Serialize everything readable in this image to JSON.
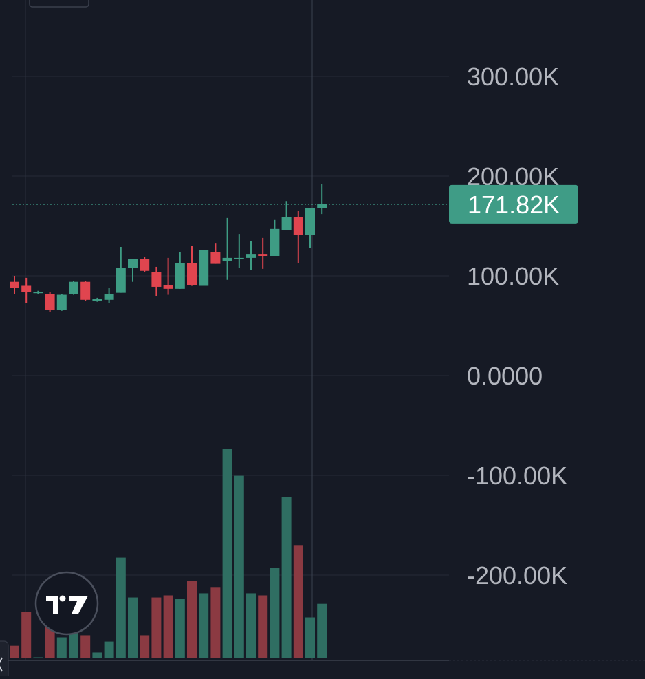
{
  "chart_data": {
    "type": "candlestick",
    "price_axis": {
      "ticks": [
        {
          "value": 300000,
          "label": "300.00K"
        },
        {
          "value": 200000,
          "label": "200.00K"
        },
        {
          "value": 100000,
          "label": "100.00K"
        },
        {
          "value": 0,
          "label": "0.0000"
        },
        {
          "value": -100000,
          "label": "-100.00K"
        },
        {
          "value": -200000,
          "label": "-200.00K"
        }
      ],
      "range": [
        -282000,
        378000
      ],
      "grid": true,
      "position": "right"
    },
    "last_price": {
      "value": 171820,
      "label": "171.82K"
    },
    "candles": [
      {
        "o": 94000,
        "h": 100000,
        "l": 82000,
        "c": 88000
      },
      {
        "o": 90000,
        "h": 98000,
        "l": 73000,
        "c": 84000
      },
      {
        "o": 83000,
        "h": 85000,
        "l": 82000,
        "c": 84000
      },
      {
        "o": 82000,
        "h": 84000,
        "l": 64000,
        "c": 66000
      },
      {
        "o": 66000,
        "h": 82000,
        "l": 65000,
        "c": 81000
      },
      {
        "o": 82000,
        "h": 95000,
        "l": 81000,
        "c": 94000
      },
      {
        "o": 94000,
        "h": 95000,
        "l": 75000,
        "c": 76000
      },
      {
        "o": 75000,
        "h": 78000,
        "l": 74000,
        "c": 77000
      },
      {
        "o": 76000,
        "h": 88000,
        "l": 73000,
        "c": 82000
      },
      {
        "o": 83000,
        "h": 129000,
        "l": 83000,
        "c": 108000
      },
      {
        "o": 108000,
        "h": 117000,
        "l": 94000,
        "c": 117000
      },
      {
        "o": 117000,
        "h": 119000,
        "l": 104000,
        "c": 105000
      },
      {
        "o": 104000,
        "h": 109000,
        "l": 80000,
        "c": 89000
      },
      {
        "o": 91000,
        "h": 118000,
        "l": 81000,
        "c": 87000
      },
      {
        "o": 87000,
        "h": 124000,
        "l": 87000,
        "c": 113000
      },
      {
        "o": 113000,
        "h": 130000,
        "l": 90000,
        "c": 91000
      },
      {
        "o": 90000,
        "h": 126000,
        "l": 90000,
        "c": 126000
      },
      {
        "o": 124000,
        "h": 133000,
        "l": 112000,
        "c": 112000
      },
      {
        "o": 115000,
        "h": 158000,
        "l": 96000,
        "c": 118000
      },
      {
        "o": 117000,
        "h": 142000,
        "l": 108000,
        "c": 118000
      },
      {
        "o": 118000,
        "h": 135000,
        "l": 106000,
        "c": 122000
      },
      {
        "o": 122000,
        "h": 138000,
        "l": 107000,
        "c": 120000
      },
      {
        "o": 120000,
        "h": 156000,
        "l": 120000,
        "c": 147000
      },
      {
        "o": 146000,
        "h": 175000,
        "l": 146000,
        "c": 159000
      },
      {
        "o": 159000,
        "h": 165000,
        "l": 113000,
        "c": 141000
      },
      {
        "o": 141000,
        "h": 168000,
        "l": 128000,
        "c": 168000
      },
      {
        "o": 168000,
        "h": 192000,
        "l": 162000,
        "c": 172000
      }
    ],
    "volume": [
      {
        "value": 0.06,
        "dir": "down"
      },
      {
        "value": 0.22,
        "dir": "down"
      },
      {
        "value": 0.005,
        "dir": "up"
      },
      {
        "value": 0.16,
        "dir": "down"
      },
      {
        "value": 0.1,
        "dir": "up"
      },
      {
        "value": 0.14,
        "dir": "up"
      },
      {
        "value": 0.11,
        "dir": "down"
      },
      {
        "value": 0.028,
        "dir": "up"
      },
      {
        "value": 0.08,
        "dir": "up"
      },
      {
        "value": 0.48,
        "dir": "up"
      },
      {
        "value": 0.29,
        "dir": "up"
      },
      {
        "value": 0.11,
        "dir": "down"
      },
      {
        "value": 0.29,
        "dir": "down"
      },
      {
        "value": 0.3,
        "dir": "down"
      },
      {
        "value": 0.285,
        "dir": "up"
      },
      {
        "value": 0.37,
        "dir": "down"
      },
      {
        "value": 0.31,
        "dir": "up"
      },
      {
        "value": 0.34,
        "dir": "down"
      },
      {
        "value": 1.0,
        "dir": "up"
      },
      {
        "value": 0.87,
        "dir": "up"
      },
      {
        "value": 0.31,
        "dir": "up"
      },
      {
        "value": 0.3,
        "dir": "down"
      },
      {
        "value": 0.43,
        "dir": "up"
      },
      {
        "value": 0.77,
        "dir": "up"
      },
      {
        "value": 0.54,
        "dir": "down"
      },
      {
        "value": 0.195,
        "dir": "up"
      },
      {
        "value": 0.26,
        "dir": "up"
      }
    ],
    "colors": {
      "background": "#161a25",
      "grid": "#262b38",
      "up": "#3e9c84",
      "down": "#e0454f",
      "volume_up": "#2f6e62",
      "volume_down": "#8b3a42",
      "axis_text": "#b3b6be",
      "last_price_badge": "#3f9c86",
      "last_price_text": "#ffffff",
      "crosshair": "#3b4150"
    },
    "logo": {
      "icon": "tradingview-logo-icon",
      "text": "TV"
    }
  }
}
